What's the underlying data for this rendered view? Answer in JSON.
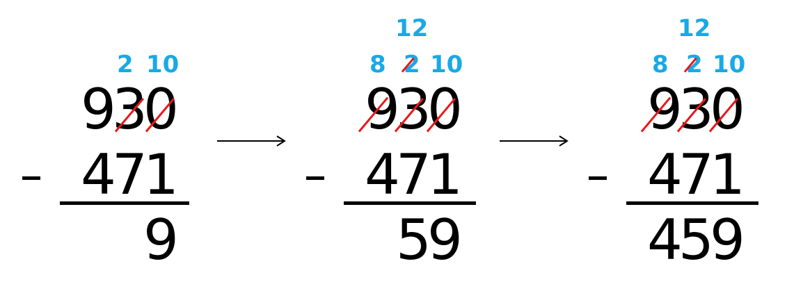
{
  "problem": {
    "top_digits": [
      "9",
      "3",
      "0"
    ],
    "subtrahend_digits": [
      "4",
      "7",
      "1"
    ],
    "operator": "-"
  },
  "stages": [
    {
      "carries_mid": [
        "2",
        "10"
      ],
      "carries_top": [],
      "answer": [
        "",
        "",
        "9"
      ]
    },
    {
      "carries_mid": [
        "8",
        "2",
        "10"
      ],
      "carries_top": [
        "12"
      ],
      "answer": [
        "",
        "5",
        "9"
      ]
    },
    {
      "carries_mid": [
        "8",
        "2",
        "10"
      ],
      "carries_top": [
        "12"
      ],
      "answer": [
        "4",
        "5",
        "9"
      ]
    }
  ],
  "colors": {
    "carry": "#19a9e6",
    "strike": "#e8171b",
    "ink": "#000000"
  }
}
